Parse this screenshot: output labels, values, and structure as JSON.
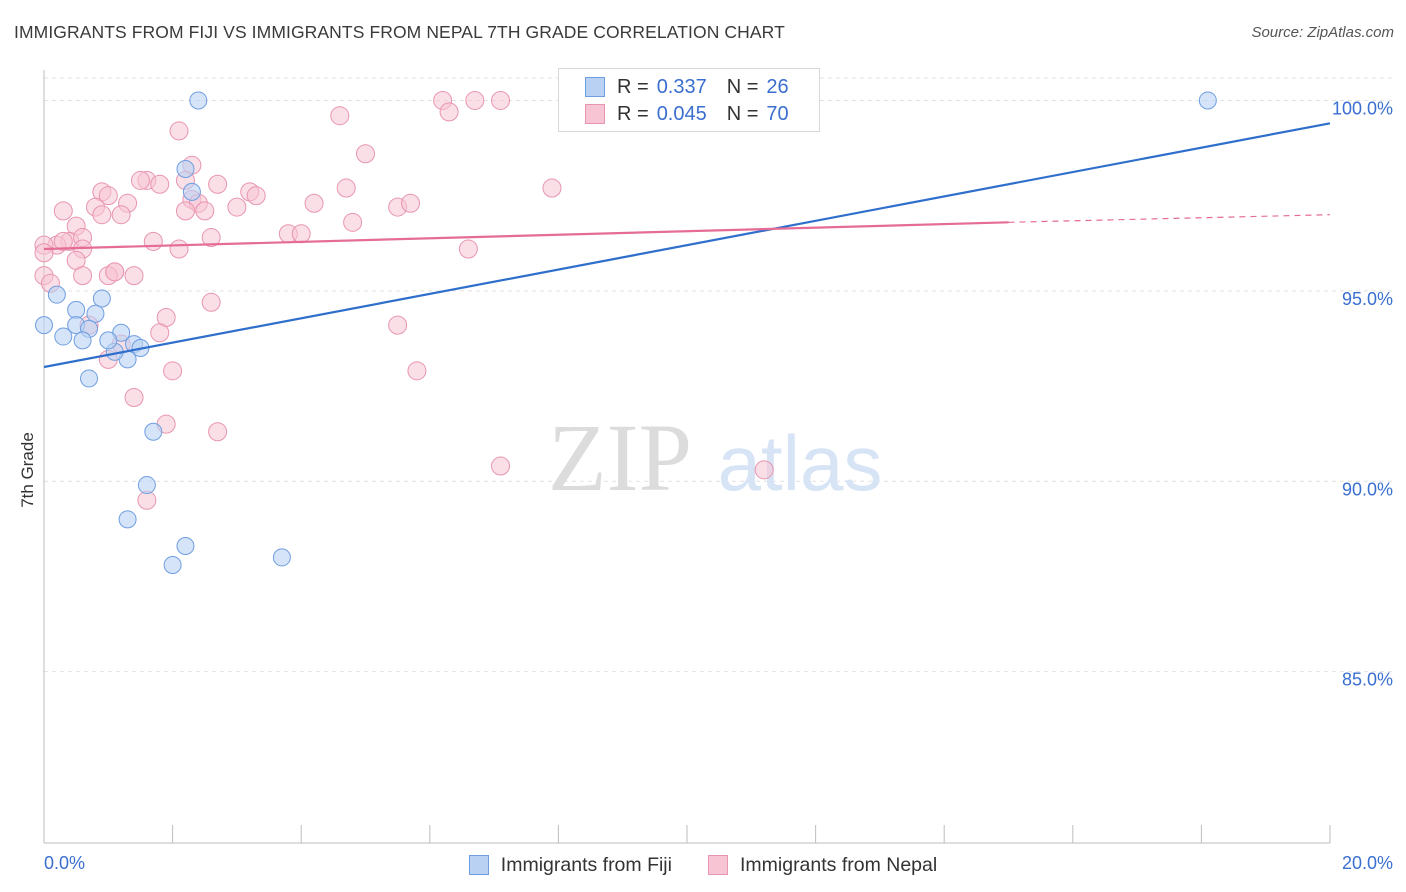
{
  "header": {
    "title": "IMMIGRANTS FROM FIJI VS IMMIGRANTS FROM NEPAL 7TH GRADE CORRELATION CHART",
    "source": "Source: ZipAtlas.com"
  },
  "legend": {
    "fiji": {
      "r_label": "R =",
      "r_value": "0.337",
      "n_label": "N =",
      "n_value": "26"
    },
    "nepal": {
      "r_label": "R =",
      "r_value": "0.045",
      "n_label": "N =",
      "n_value": "70"
    }
  },
  "watermark": {
    "zip": "ZIP",
    "atlas": "atlas"
  },
  "colors": {
    "fiji_fill": "#b9d2f3",
    "fiji_stroke": "#6f9ee0",
    "fiji_line": "#2f6fcc",
    "nepal_fill": "#f7c4d3",
    "nepal_stroke": "#e895b1",
    "nepal_line": "#e46c96",
    "tick_text": "#3a6fd0",
    "grid": "#e2e2e2"
  },
  "chart_data": {
    "type": "scatter",
    "title": "IMMIGRANTS FROM FIJI VS IMMIGRANTS FROM NEPAL 7TH GRADE CORRELATION CHART",
    "xlabel": "",
    "ylabel": "7th Grade",
    "xlim": [
      0,
      20
    ],
    "ylim": [
      80.5,
      100.8
    ],
    "x_tick_labels": [
      "0.0%",
      "20.0%"
    ],
    "y_ticks": [
      85,
      90,
      95,
      100
    ],
    "y_tick_labels": [
      "85.0%",
      "90.0%",
      "95.0%",
      "100.0%"
    ],
    "grid": true,
    "legend_position": "top-center",
    "series": [
      {
        "name": "Immigrants from Fiji",
        "points": [
          [
            2.4,
            100.0
          ],
          [
            18.1,
            100.0
          ],
          [
            2.2,
            98.2
          ],
          [
            2.3,
            97.6
          ],
          [
            0.2,
            94.9
          ],
          [
            0.5,
            94.5
          ],
          [
            0.9,
            94.8
          ],
          [
            0.5,
            94.1
          ],
          [
            0.0,
            94.1
          ],
          [
            0.3,
            93.8
          ],
          [
            0.8,
            94.4
          ],
          [
            0.7,
            94.0
          ],
          [
            1.2,
            93.9
          ],
          [
            0.6,
            93.7
          ],
          [
            1.4,
            93.6
          ],
          [
            1.5,
            93.5
          ],
          [
            1.3,
            93.2
          ],
          [
            1.1,
            93.4
          ],
          [
            0.7,
            92.7
          ],
          [
            1.7,
            91.3
          ],
          [
            1.6,
            89.9
          ],
          [
            1.3,
            89.0
          ],
          [
            2.2,
            88.3
          ],
          [
            2.0,
            87.8
          ],
          [
            3.7,
            88.0
          ],
          [
            1.0,
            93.7
          ]
        ],
        "trend": {
          "x": [
            0,
            20
          ],
          "y": [
            93.0,
            99.4
          ]
        }
      },
      {
        "name": "Immigrants from Nepal",
        "points": [
          [
            6.2,
            100.0
          ],
          [
            6.7,
            100.0
          ],
          [
            7.1,
            100.0
          ],
          [
            6.3,
            99.7
          ],
          [
            4.6,
            99.6
          ],
          [
            2.1,
            99.2
          ],
          [
            5.0,
            98.6
          ],
          [
            2.3,
            98.3
          ],
          [
            1.6,
            97.9
          ],
          [
            1.8,
            97.8
          ],
          [
            2.2,
            97.9
          ],
          [
            2.7,
            97.8
          ],
          [
            3.2,
            97.6
          ],
          [
            3.3,
            97.5
          ],
          [
            4.7,
            97.7
          ],
          [
            7.9,
            97.7
          ],
          [
            0.9,
            97.6
          ],
          [
            1.0,
            97.5
          ],
          [
            1.3,
            97.3
          ],
          [
            2.3,
            97.4
          ],
          [
            2.4,
            97.3
          ],
          [
            5.5,
            97.2
          ],
          [
            5.7,
            97.3
          ],
          [
            4.2,
            97.3
          ],
          [
            2.2,
            97.1
          ],
          [
            2.5,
            97.1
          ],
          [
            0.8,
            97.2
          ],
          [
            1.2,
            97.0
          ],
          [
            0.9,
            97.0
          ],
          [
            0.3,
            97.1
          ],
          [
            4.8,
            96.8
          ],
          [
            0.5,
            96.7
          ],
          [
            3.8,
            96.5
          ],
          [
            4.0,
            96.5
          ],
          [
            2.6,
            96.4
          ],
          [
            1.7,
            96.3
          ],
          [
            0.4,
            96.3
          ],
          [
            0.2,
            96.2
          ],
          [
            0.6,
            96.4
          ],
          [
            0.0,
            96.2
          ],
          [
            0.6,
            96.1
          ],
          [
            2.1,
            96.1
          ],
          [
            6.6,
            96.1
          ],
          [
            0.5,
            95.8
          ],
          [
            1.1,
            95.5
          ],
          [
            1.4,
            95.4
          ],
          [
            0.6,
            95.4
          ],
          [
            1.0,
            95.4
          ],
          [
            0.0,
            95.4
          ],
          [
            0.1,
            95.2
          ],
          [
            2.6,
            94.7
          ],
          [
            1.9,
            94.3
          ],
          [
            0.7,
            94.1
          ],
          [
            5.5,
            94.1
          ],
          [
            1.8,
            93.9
          ],
          [
            1.2,
            93.6
          ],
          [
            1.0,
            93.2
          ],
          [
            2.0,
            92.9
          ],
          [
            5.8,
            92.9
          ],
          [
            1.4,
            92.2
          ],
          [
            1.9,
            91.5
          ],
          [
            2.7,
            91.3
          ],
          [
            7.1,
            90.4
          ],
          [
            11.2,
            90.3
          ],
          [
            1.6,
            89.5
          ],
          [
            1.5,
            97.9
          ],
          [
            3.0,
            97.2
          ],
          [
            0.0,
            96.0
          ],
          [
            1.1,
            95.5
          ],
          [
            0.3,
            96.3
          ]
        ],
        "trend": {
          "x": [
            0,
            15,
            20
          ],
          "y": [
            96.1,
            96.8,
            97.0
          ]
        }
      }
    ]
  },
  "axis": {
    "ylabel": "7th Grade"
  }
}
